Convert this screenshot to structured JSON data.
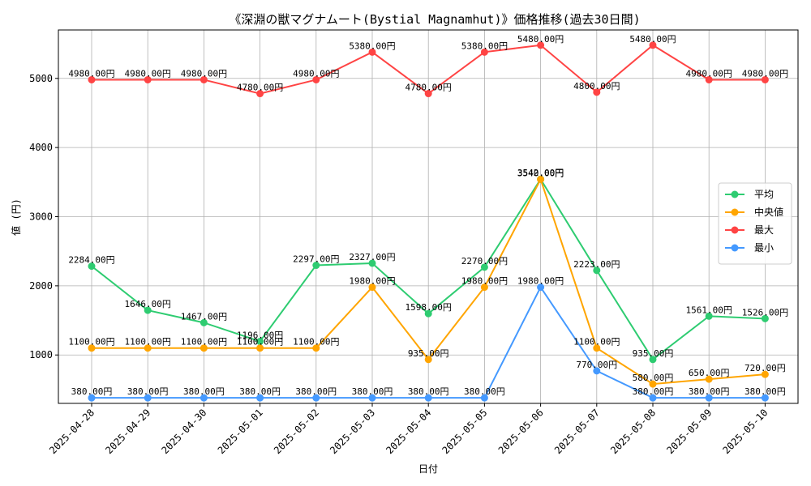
{
  "chart_data": {
    "type": "line",
    "title": "《深淵の獣マグナムート(Bystial Magnamhut)》価格推移(過去30日間)",
    "xlabel": "日付",
    "ylabel": "値 (円)",
    "ylim": [
      300,
      5700
    ],
    "yticks": [
      1000,
      2000,
      3000,
      4000,
      5000
    ],
    "grid": true,
    "legend_position": "right",
    "label_suffix": "円",
    "categories": [
      "2025-04-28",
      "2025-04-29",
      "2025-04-30",
      "2025-05-01",
      "2025-05-02",
      "2025-05-03",
      "2025-05-04",
      "2025-05-05",
      "2025-05-06",
      "2025-05-07",
      "2025-05-08",
      "2025-05-09",
      "2025-05-10"
    ],
    "series": [
      {
        "name": "平均",
        "color": "#2ecc71",
        "values": [
          2284,
          1646,
          1467,
          1196,
          2297,
          2327,
          1598,
          2270,
          3542,
          2223,
          935,
          1561,
          1526
        ]
      },
      {
        "name": "中央値",
        "color": "#ffa500",
        "values": [
          1100,
          1100,
          1100,
          1100,
          1100,
          1980,
          935,
          1980,
          3540,
          1100,
          580,
          650,
          720
        ]
      },
      {
        "name": "最大",
        "color": "#ff4444",
        "values": [
          4980,
          4980,
          4980,
          4780,
          4980,
          5380,
          4780,
          5380,
          5480,
          4800,
          5480,
          4980,
          4980
        ]
      },
      {
        "name": "最小",
        "color": "#4499ff",
        "values": [
          380,
          380,
          380,
          380,
          380,
          380,
          380,
          380,
          1980,
          770,
          380,
          380,
          380
        ]
      }
    ]
  }
}
